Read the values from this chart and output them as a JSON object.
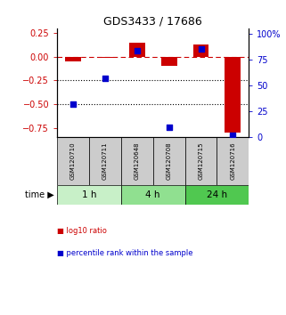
{
  "title": "GDS3433 / 17686",
  "samples": [
    "GSM120710",
    "GSM120711",
    "GSM120648",
    "GSM120708",
    "GSM120715",
    "GSM120716"
  ],
  "log10_ratio": [
    -0.05,
    -0.01,
    0.15,
    -0.1,
    0.13,
    -0.8
  ],
  "percentile_rank": [
    32,
    57,
    83,
    10,
    85,
    2
  ],
  "time_groups": [
    {
      "label": "1 h",
      "samples": [
        0,
        1
      ],
      "color": "#c8f0c8"
    },
    {
      "label": "4 h",
      "samples": [
        2,
        3
      ],
      "color": "#90e090"
    },
    {
      "label": "24 h",
      "samples": [
        4,
        5
      ],
      "color": "#50c850"
    }
  ],
  "ylim_left": [
    -0.85,
    0.3
  ],
  "ylim_right": [
    0,
    105
  ],
  "yticks_left": [
    -0.75,
    -0.5,
    -0.25,
    0,
    0.25
  ],
  "yticks_right": [
    0,
    25,
    50,
    75,
    100
  ],
  "hlines": [
    -0.25,
    -0.5
  ],
  "bar_color_red": "#cc0000",
  "dot_color_blue": "#0000cc",
  "zero_line_color": "#cc0000",
  "background_color": "#ffffff",
  "sample_box_color": "#cccccc",
  "bar_width": 0.5,
  "dot_size": 25,
  "figsize": [
    3.21,
    3.54
  ],
  "dpi": 100
}
